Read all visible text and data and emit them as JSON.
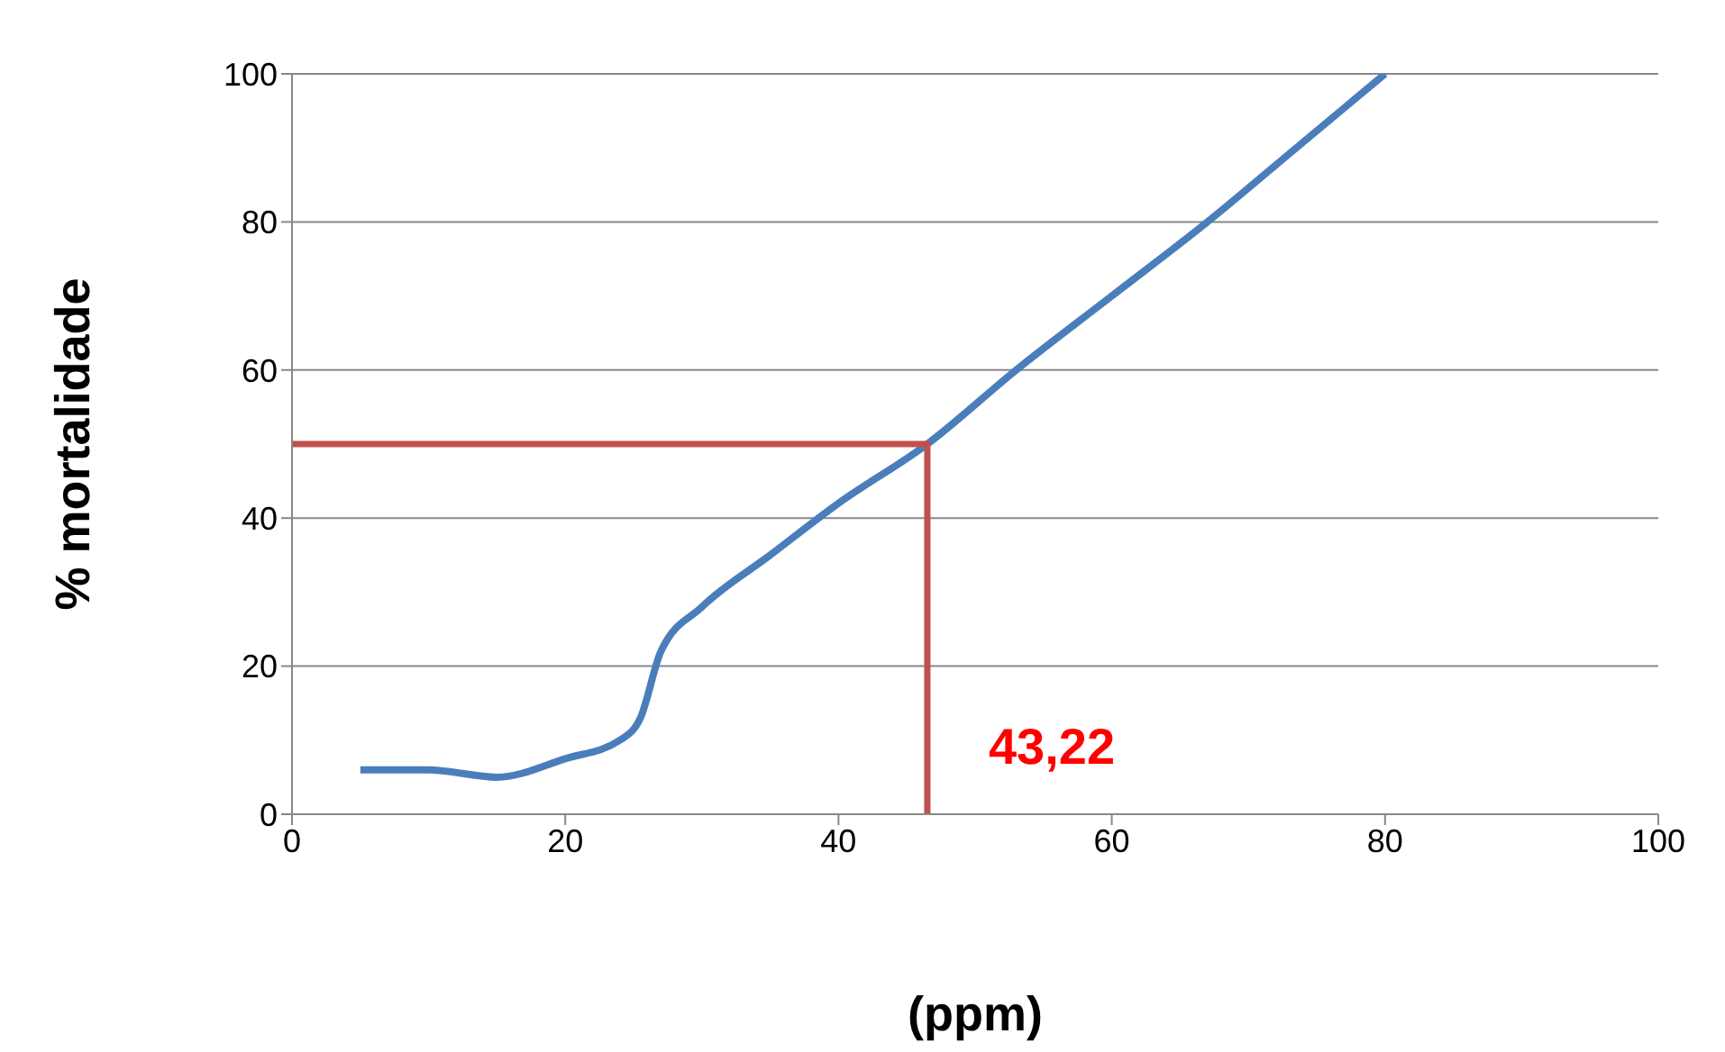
{
  "chart_data": {
    "type": "line",
    "xlabel": "(ppm)",
    "ylabel": "% mortalidade",
    "xlim": [
      0,
      100
    ],
    "xticks": [
      0,
      20,
      40,
      60,
      80,
      100
    ],
    "ylim": [
      0,
      100
    ],
    "yticks": [
      0,
      20,
      40,
      60,
      80,
      100
    ],
    "grid": "y",
    "marker": "none",
    "series": [
      {
        "color": "#4a7ebb",
        "x": [
          5,
          10,
          15,
          20,
          24,
          25.5,
          27,
          30,
          35,
          40,
          46.5,
          53,
          60,
          67,
          73.5,
          80
        ],
        "values": [
          6,
          6,
          5,
          7.5,
          10,
          13,
          22,
          28,
          35,
          42,
          50,
          60,
          70,
          80,
          90,
          100
        ]
      },
      {
        "color": "#c0504d",
        "x": [
          0,
          46.5,
          46.5
        ],
        "values": [
          50,
          50,
          0
        ]
      }
    ],
    "annotations": [
      {
        "text": "43,22",
        "x": 46.5,
        "y": 0
      }
    ]
  }
}
